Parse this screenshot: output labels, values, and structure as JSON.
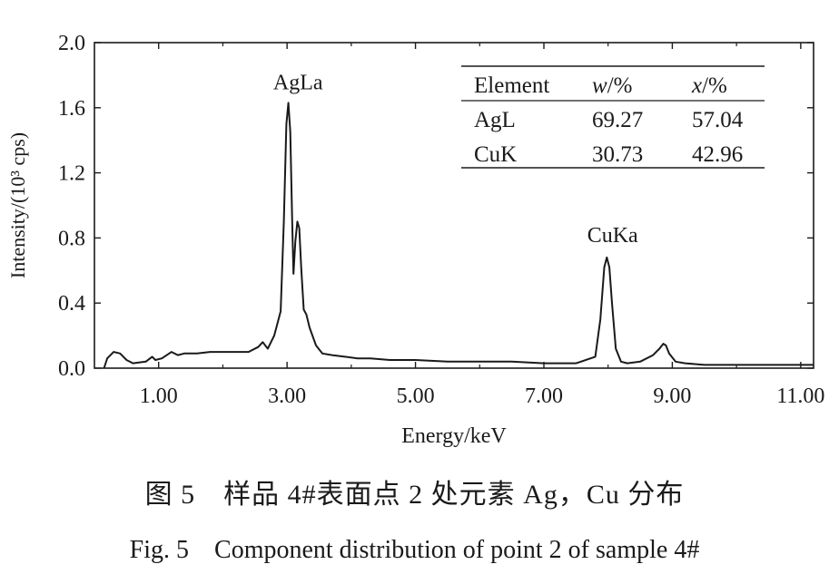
{
  "chart_data": {
    "type": "line",
    "xlabel": "Energy/keV",
    "ylabel": "Intensity/(10³ cps)",
    "xlim": [
      0.0,
      11.2
    ],
    "ylim": [
      0.0,
      2.0
    ],
    "x_ticks": [
      1.0,
      3.0,
      5.0,
      7.0,
      9.0,
      11.0
    ],
    "x_tick_labels": [
      "1.00",
      "3.00",
      "5.00",
      "7.00",
      "9.00",
      "11.00"
    ],
    "y_ticks": [
      0.0,
      0.4,
      0.8,
      1.2,
      1.6,
      2.0
    ],
    "y_tick_labels": [
      "0.0",
      "0.4",
      "0.8",
      "1.2",
      "1.6",
      "2.0"
    ],
    "grid": false,
    "series": [
      {
        "color": "#1a1a1a",
        "x": [
          0.15,
          0.2,
          0.3,
          0.4,
          0.5,
          0.6,
          0.8,
          0.9,
          0.95,
          1.05,
          1.2,
          1.3,
          1.4,
          1.6,
          1.8,
          2.0,
          2.2,
          2.4,
          2.55,
          2.62,
          2.7,
          2.8,
          2.9,
          2.95,
          2.99,
          3.02,
          3.05,
          3.08,
          3.1,
          3.13,
          3.16,
          3.19,
          3.22,
          3.26,
          3.3,
          3.35,
          3.45,
          3.55,
          3.7,
          3.9,
          4.1,
          4.3,
          4.6,
          5.0,
          5.5,
          6.0,
          6.5,
          7.0,
          7.5,
          7.8,
          7.88,
          7.94,
          7.98,
          8.02,
          8.06,
          8.12,
          8.2,
          8.3,
          8.5,
          8.7,
          8.8,
          8.86,
          8.9,
          8.95,
          9.05,
          9.2,
          9.5,
          10.0,
          10.5,
          11.0,
          11.2
        ],
        "y": [
          0.0,
          0.06,
          0.1,
          0.09,
          0.05,
          0.03,
          0.04,
          0.07,
          0.05,
          0.06,
          0.1,
          0.08,
          0.09,
          0.09,
          0.1,
          0.1,
          0.1,
          0.1,
          0.13,
          0.16,
          0.12,
          0.2,
          0.35,
          0.9,
          1.5,
          1.63,
          1.45,
          0.9,
          0.58,
          0.78,
          0.9,
          0.86,
          0.62,
          0.36,
          0.33,
          0.25,
          0.14,
          0.09,
          0.08,
          0.07,
          0.06,
          0.06,
          0.05,
          0.05,
          0.04,
          0.04,
          0.04,
          0.03,
          0.03,
          0.07,
          0.3,
          0.62,
          0.68,
          0.62,
          0.4,
          0.12,
          0.04,
          0.03,
          0.04,
          0.08,
          0.12,
          0.15,
          0.14,
          0.09,
          0.04,
          0.03,
          0.02,
          0.02,
          0.02,
          0.02,
          0.02
        ]
      }
    ],
    "annotations": [
      {
        "text": "AgLa",
        "x": 3.1,
        "y": 1.68
      },
      {
        "text": "CuKa",
        "x": 8.0,
        "y": 0.74
      }
    ]
  },
  "inset_table": {
    "headers": [
      {
        "main": "Element",
        "unit": ""
      },
      {
        "main": "w",
        "unit": "/%"
      },
      {
        "main": "x",
        "unit": "/%"
      }
    ],
    "rows": [
      [
        "AgL",
        "69.27",
        "57.04"
      ],
      [
        "CuK",
        "30.73",
        "42.96"
      ]
    ]
  },
  "captions": {
    "chinese": "图 5　样品 4#表面点 2 处元素 Ag，Cu 分布",
    "english": "Fig. 5　Component distribution of point 2 of sample 4#"
  }
}
